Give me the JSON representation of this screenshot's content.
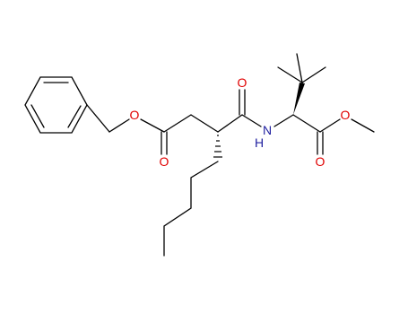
{
  "atoms": [
    {
      "label": "O"
    },
    {
      "label": "O"
    },
    {
      "label": "O"
    },
    {
      "label": "N"
    },
    {
      "label": "H"
    },
    {
      "label": "O"
    },
    {
      "label": "O"
    }
  ]
}
